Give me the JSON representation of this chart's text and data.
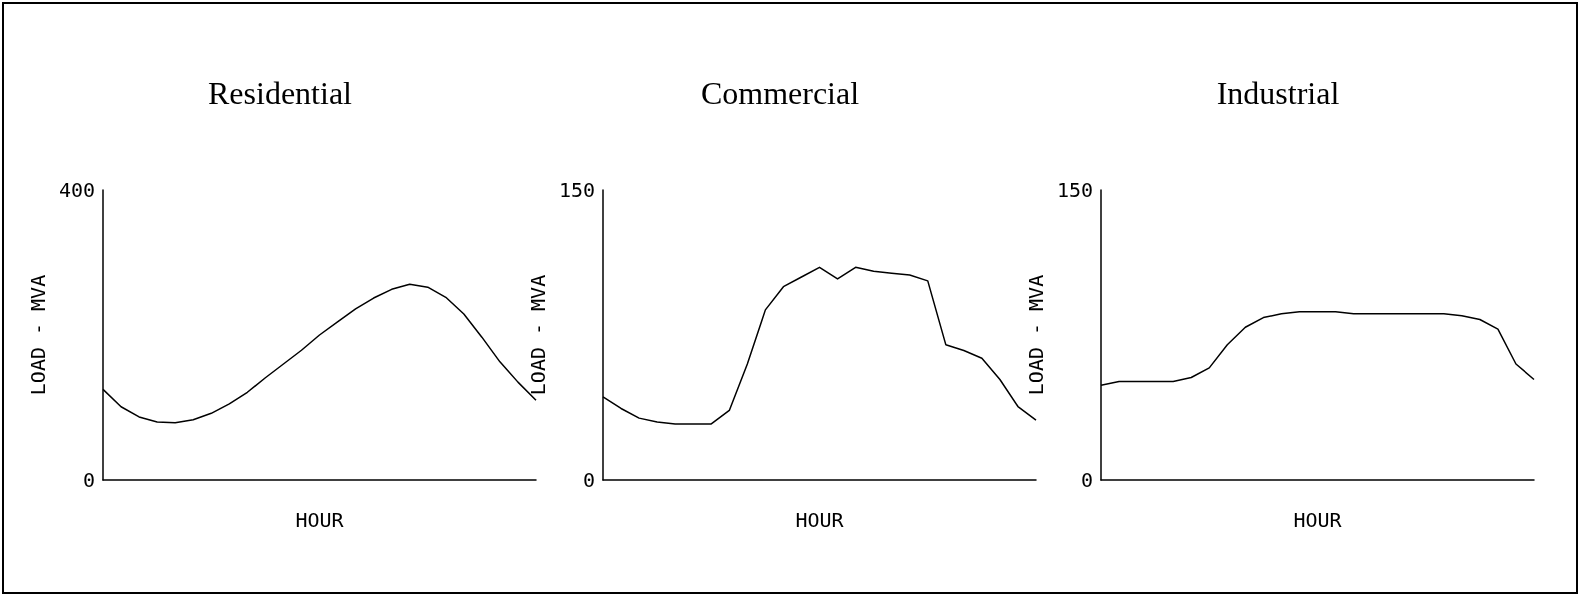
{
  "chart_data": [
    {
      "type": "line",
      "title": "Residential",
      "xlabel": "HOUR",
      "ylabel": "LOAD - MVA",
      "categories": [
        null,
        null,
        null,
        null,
        null,
        null,
        null,
        null,
        null,
        null,
        null,
        null,
        null,
        null,
        null,
        null,
        null,
        null,
        null,
        null,
        null,
        null,
        null,
        null,
        null
      ],
      "values": [
        125,
        101,
        87,
        80,
        79,
        83,
        92,
        105,
        121,
        141,
        160,
        179,
        200,
        218,
        236,
        251,
        263,
        270,
        266,
        252,
        229,
        197,
        163,
        135,
        110
      ],
      "color": "#000000",
      "ylim": [
        0,
        400
      ],
      "yticks": [
        0,
        400
      ],
      "grid": false,
      "marker": "none",
      "line_style": "solid"
    },
    {
      "type": "line",
      "title": "Commercial",
      "xlabel": "HOUR",
      "ylabel": "LOAD - MVA",
      "categories": [
        null,
        null,
        null,
        null,
        null,
        null,
        null,
        null,
        null,
        null,
        null,
        null,
        null,
        null,
        null,
        null,
        null,
        null,
        null,
        null,
        null,
        null,
        null,
        null,
        null
      ],
      "values": [
        43,
        37,
        32,
        30,
        29,
        29,
        29,
        36,
        60,
        88,
        100,
        105,
        110,
        104,
        110,
        108,
        107,
        106,
        103,
        70,
        67,
        63,
        52,
        38,
        31
      ],
      "color": "#000000",
      "ylim": [
        0,
        150
      ],
      "yticks": [
        0,
        150
      ],
      "grid": false,
      "marker": "none",
      "line_style": "solid"
    },
    {
      "type": "line",
      "title": "Industrial",
      "xlabel": "HOUR",
      "ylabel": "LOAD - MVA",
      "categories": [
        null,
        null,
        null,
        null,
        null,
        null,
        null,
        null,
        null,
        null,
        null,
        null,
        null,
        null,
        null,
        null,
        null,
        null,
        null,
        null,
        null,
        null,
        null,
        null,
        null
      ],
      "values": [
        49,
        51,
        51,
        51,
        51,
        53,
        58,
        70,
        79,
        84,
        86,
        87,
        87,
        87,
        86,
        86,
        86,
        86,
        86,
        86,
        85,
        83,
        78,
        60,
        52
      ],
      "color": "#000000",
      "ylim": [
        0,
        150
      ],
      "yticks": [
        0,
        150
      ],
      "grid": false,
      "marker": "none",
      "line_style": "solid"
    }
  ]
}
